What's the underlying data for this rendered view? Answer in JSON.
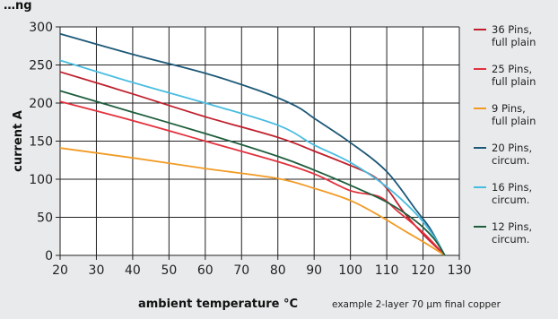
{
  "chart_data": {
    "type": "line",
    "title": "…ng",
    "xlabel": "ambient temperature °C",
    "ylabel": "current A",
    "note": "example 2-layer 70 µm final copper",
    "xlim": [
      20,
      130
    ],
    "ylim": [
      0,
      300
    ],
    "xticks": [
      "20",
      "30",
      "40",
      "50",
      "60",
      "70",
      "80",
      "90",
      "100",
      "110",
      "120",
      "130"
    ],
    "yticks": [
      "0",
      "50",
      "100",
      "150",
      "200",
      "250",
      "300"
    ],
    "grid": true,
    "legend_position": "right",
    "series": [
      {
        "name": "36 Pins,\nfull plain",
        "color": "#c01f2c",
        "points": [
          [
            20,
            241
          ],
          [
            40,
            212
          ],
          [
            60,
            182
          ],
          [
            80,
            155
          ],
          [
            90,
            137
          ],
          [
            100,
            118
          ],
          [
            106,
            105
          ],
          [
            110,
            88
          ],
          [
            115,
            55
          ],
          [
            120,
            28
          ],
          [
            126,
            0
          ]
        ]
      },
      {
        "name": "25 Pins,\nfull plain",
        "color": "#e2313d",
        "points": [
          [
            20,
            202
          ],
          [
            40,
            177
          ],
          [
            60,
            150
          ],
          [
            80,
            123
          ],
          [
            90,
            107
          ],
          [
            100,
            85
          ],
          [
            108,
            77
          ],
          [
            113,
            58
          ],
          [
            120,
            30
          ],
          [
            126,
            0
          ]
        ]
      },
      {
        "name": "9 Pins,\nfull plain",
        "color": "#f19b25",
        "points": [
          [
            20,
            141
          ],
          [
            40,
            128
          ],
          [
            60,
            114
          ],
          [
            80,
            101
          ],
          [
            90,
            88
          ],
          [
            100,
            72
          ],
          [
            108,
            52
          ],
          [
            115,
            32
          ],
          [
            120,
            18
          ],
          [
            126,
            0
          ]
        ]
      },
      {
        "name": "20 Pins,\ncircum.",
        "color": "#1c5877",
        "points": [
          [
            20,
            291
          ],
          [
            40,
            264
          ],
          [
            60,
            239
          ],
          [
            75,
            216
          ],
          [
            85,
            196
          ],
          [
            90,
            180
          ],
          [
            100,
            148
          ],
          [
            110,
            110
          ],
          [
            118,
            60
          ],
          [
            122,
            35
          ],
          [
            126,
            0
          ]
        ]
      },
      {
        "name": "16 Pins,\ncircum.",
        "color": "#49bde1",
        "points": [
          [
            20,
            256
          ],
          [
            40,
            227
          ],
          [
            60,
            200
          ],
          [
            80,
            171
          ],
          [
            90,
            145
          ],
          [
            100,
            122
          ],
          [
            110,
            90
          ],
          [
            118,
            55
          ],
          [
            123,
            25
          ],
          [
            126,
            0
          ]
        ]
      },
      {
        "name": "12 Pins,\ncircum.",
        "color": "#1f5e3d",
        "points": [
          [
            20,
            216
          ],
          [
            40,
            188
          ],
          [
            60,
            160
          ],
          [
            80,
            130
          ],
          [
            90,
            112
          ],
          [
            100,
            92
          ],
          [
            110,
            70
          ],
          [
            118,
            45
          ],
          [
            123,
            22
          ],
          [
            126,
            0
          ]
        ]
      }
    ]
  }
}
